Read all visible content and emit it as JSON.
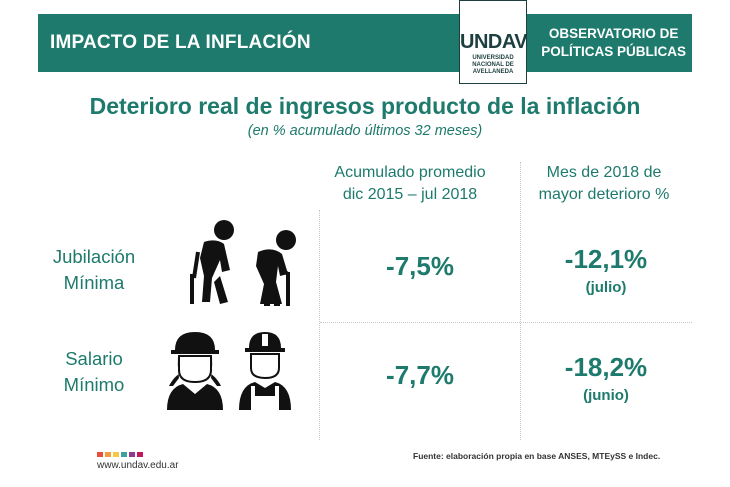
{
  "header": {
    "left_title": "IMPACTO DE LA INFLACIÓN",
    "right_line1": "OBSERVATORIO DE",
    "right_line2": "POLÍTICAS PÚBLICAS"
  },
  "logo": {
    "word": "UNDAV",
    "sub_line1": "UNIVERSIDAD",
    "sub_line2": "NACIONAL DE",
    "sub_line3": "AVELLANEDA"
  },
  "title": "Deterioro real de ingresos producto de la inflación",
  "subtitle": "(en % acumulado últimos 32 meses)",
  "columns": {
    "c1_line1": "Acumulado promedio",
    "c1_line2": "dic 2015 – jul 2018",
    "c2_line1": "Mes de 2018 de",
    "c2_line2": "mayor deterioro %"
  },
  "rows": [
    {
      "label_line1": "Jubilación",
      "label_line2": "Mínima",
      "accumulated": "-7,5%",
      "worst": "-12,1%",
      "worst_month": "(julio)",
      "icon": "elderly-couple-icon"
    },
    {
      "label_line1": "Salario",
      "label_line2": "Mínimo",
      "accumulated": "-7,7%",
      "worst": "-18,2%",
      "worst_month": "(junio)",
      "icon": "workers-icon"
    }
  ],
  "footer": {
    "website": "www.undav.edu.ar",
    "source": "Fuente: elaboración propia en base ANSES, MTEySS e Indec.",
    "dot_colors": [
      "#e94e3c",
      "#f39c3a",
      "#f6c744",
      "#3aa3a0",
      "#8e3b8f",
      "#c2185b"
    ]
  },
  "colors": {
    "accent": "#1d7a6c",
    "header_bg": "#1e7a6c",
    "logo_dark": "#1e3f40"
  }
}
